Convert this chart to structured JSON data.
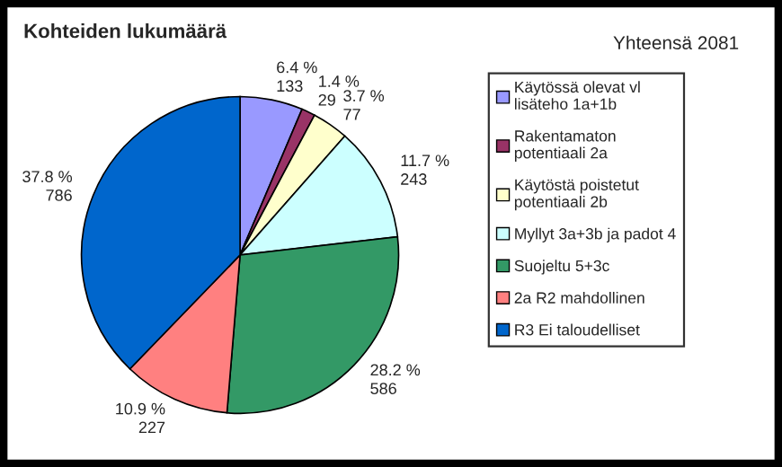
{
  "chart_data": {
    "type": "pie",
    "title": "Kohteiden lukumäärä",
    "categories": [
      "Käytössä olevat vl\nlisäteho 1a+1b",
      "Rakentamaton\npotentiaali 2a",
      "Käytöstä poistetut\npotentiaali 2b",
      "Myllyt 3a+3b ja padot 4",
      "Suojeltu 5+3c",
      "2a R2 mahdollinen",
      "R3 Ei taloudelliset"
    ],
    "values": [
      133,
      29,
      77,
      243,
      586,
      227,
      786
    ],
    "colors": [
      "#9999ff",
      "#993366",
      "#ffffcc",
      "#ccffff",
      "#339966",
      "#ff8080",
      "#0066cc"
    ],
    "value_labels": [
      "6.4 %\n133",
      "1.4 %\n29",
      "3.7 %\n77",
      "11.7 %\n243",
      "28.2 %\n586",
      "10.9 %\n227",
      "37.8 %\n786"
    ],
    "annotations": [
      "Yhteensä 2081"
    ],
    "legend": "right"
  }
}
